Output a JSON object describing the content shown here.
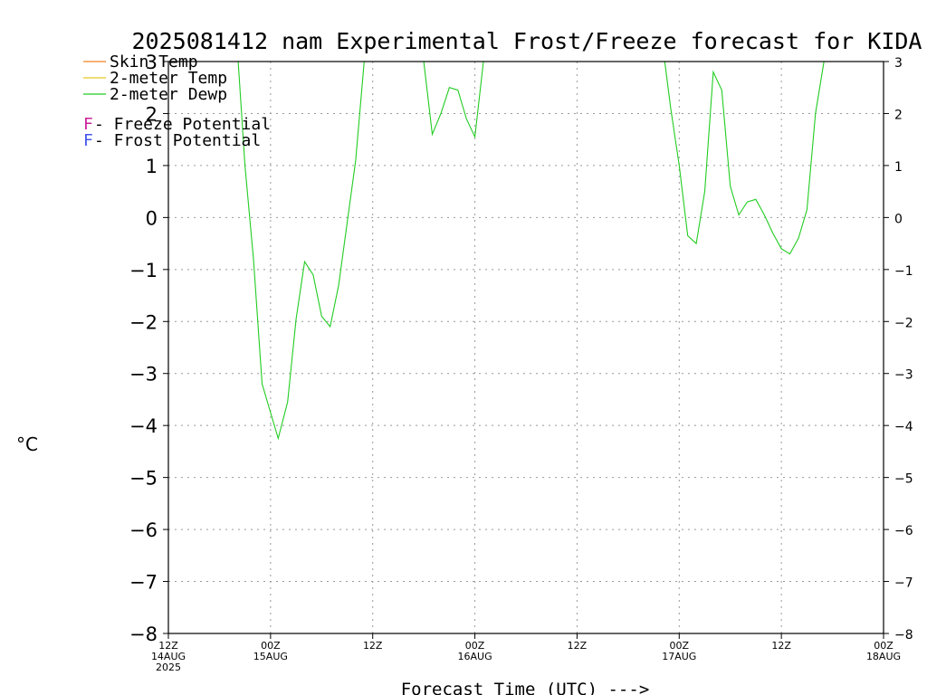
{
  "chart_data": {
    "type": "line",
    "title": "2025081412 nam Experimental Frost/Freeze forecast for KIDA",
    "ylabel": "°C",
    "xlabel": "Forecast Time (UTC) --->",
    "ylim": [
      -8,
      3
    ],
    "yticks": [
      3,
      2,
      1,
      0,
      -1,
      -2,
      -3,
      -4,
      -5,
      -6,
      -7,
      -8
    ],
    "xlim": [
      0,
      84
    ],
    "x_unit": "hours since 12Z 14AUG 2025",
    "xticks": [
      {
        "x": 0,
        "line1": "12Z",
        "line2": "14AUG",
        "line3": "2025"
      },
      {
        "x": 12,
        "line1": "00Z",
        "line2": "15AUG",
        "line3": ""
      },
      {
        "x": 24,
        "line1": "12Z",
        "line2": "",
        "line3": ""
      },
      {
        "x": 36,
        "line1": "00Z",
        "line2": "16AUG",
        "line3": ""
      },
      {
        "x": 48,
        "line1": "12Z",
        "line2": "",
        "line3": ""
      },
      {
        "x": 60,
        "line1": "00Z",
        "line2": "17AUG",
        "line3": ""
      },
      {
        "x": 72,
        "line1": "12Z",
        "line2": "",
        "line3": ""
      },
      {
        "x": 84,
        "line1": "00Z",
        "line2": "18AUG",
        "line3": ""
      }
    ],
    "grid": true,
    "legend": [
      {
        "label": "Skin Temp",
        "color": "#f08020"
      },
      {
        "label": "2-meter Temp",
        "color": "#e8c820"
      },
      {
        "label": "2-meter Dewp",
        "color": "#22cc22"
      }
    ],
    "potential_legend": [
      {
        "letter": "F",
        "text": " - Freeze Potential",
        "color": "#cc2299"
      },
      {
        "letter": "F",
        "text": " - Frost Potential",
        "color": "#4455ee"
      }
    ],
    "series": [
      {
        "name": "2-meter Dewp",
        "color": "#22cc22",
        "segments": [
          [
            [
              8.2,
              3.0
            ],
            [
              9,
              1.0
            ],
            [
              10,
              -0.8
            ],
            [
              11,
              -3.2
            ],
            [
              12.9,
              -4.25
            ],
            [
              14,
              -3.55
            ],
            [
              15,
              -1.95
            ],
            [
              16,
              -0.85
            ],
            [
              17,
              -1.1
            ],
            [
              18,
              -1.9
            ],
            [
              19,
              -2.1
            ],
            [
              20,
              -1.3
            ],
            [
              21,
              -0.1
            ],
            [
              22,
              1.1
            ],
            [
              23,
              3.0
            ]
          ],
          [
            [
              30,
              3.0
            ],
            [
              31,
              1.6
            ],
            [
              32,
              2.0
            ],
            [
              33,
              2.5
            ],
            [
              34,
              2.45
            ],
            [
              35,
              1.9
            ],
            [
              36,
              1.55
            ],
            [
              37,
              3.0
            ]
          ],
          [
            [
              58.3,
              3.0
            ],
            [
              59,
              2.1
            ],
            [
              60,
              1.0
            ],
            [
              61,
              -0.35
            ],
            [
              62,
              -0.5
            ],
            [
              63,
              0.5
            ],
            [
              64,
              2.8
            ],
            [
              65,
              2.45
            ],
            [
              66,
              0.6
            ],
            [
              67,
              0.05
            ],
            [
              68,
              0.3
            ],
            [
              69,
              0.35
            ],
            [
              70,
              0.05
            ],
            [
              71,
              -0.3
            ],
            [
              72,
              -0.6
            ],
            [
              73,
              -0.7
            ],
            [
              74,
              -0.4
            ],
            [
              75,
              0.15
            ],
            [
              76,
              2.0
            ],
            [
              77,
              3.0
            ]
          ]
        ]
      }
    ]
  }
}
